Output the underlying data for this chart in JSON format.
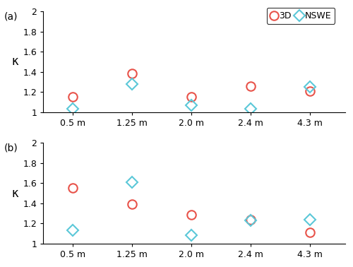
{
  "categories": [
    "0.5 m",
    "1.25 m",
    "2.0 m",
    "2.4 m",
    "4.3 m"
  ],
  "x_positions": [
    1,
    2,
    3,
    4,
    5
  ],
  "panel_a": {
    "3D": [
      1.15,
      1.38,
      1.15,
      1.26,
      1.21
    ],
    "NSWE": [
      1.03,
      1.28,
      1.07,
      1.03,
      1.25
    ]
  },
  "panel_b": {
    "3D": [
      1.55,
      1.39,
      1.29,
      1.24,
      1.11
    ],
    "NSWE": [
      1.13,
      1.61,
      1.08,
      1.23,
      1.24
    ]
  },
  "ylim": [
    1.0,
    2.0
  ],
  "yticks": [
    1.0,
    1.2,
    1.4,
    1.6,
    1.8,
    2.0
  ],
  "ytick_labels": [
    "1",
    "1.2",
    "1.4",
    "1.6",
    "1.8",
    "2"
  ],
  "ylabel": "κ",
  "color_3D": "#e8534a",
  "color_NSWE": "#5bc8d8",
  "label_3D": "3D",
  "label_NSWE": "NSWE",
  "panel_labels": [
    "(a)",
    "(b)"
  ],
  "legend_fontsize": 9,
  "axis_fontsize": 10,
  "tick_fontsize": 9,
  "marker_size_circle": 9,
  "marker_size_diamond": 8,
  "linewidth": 1.5,
  "figsize": [
    5.0,
    3.78
  ],
  "dpi": 100
}
